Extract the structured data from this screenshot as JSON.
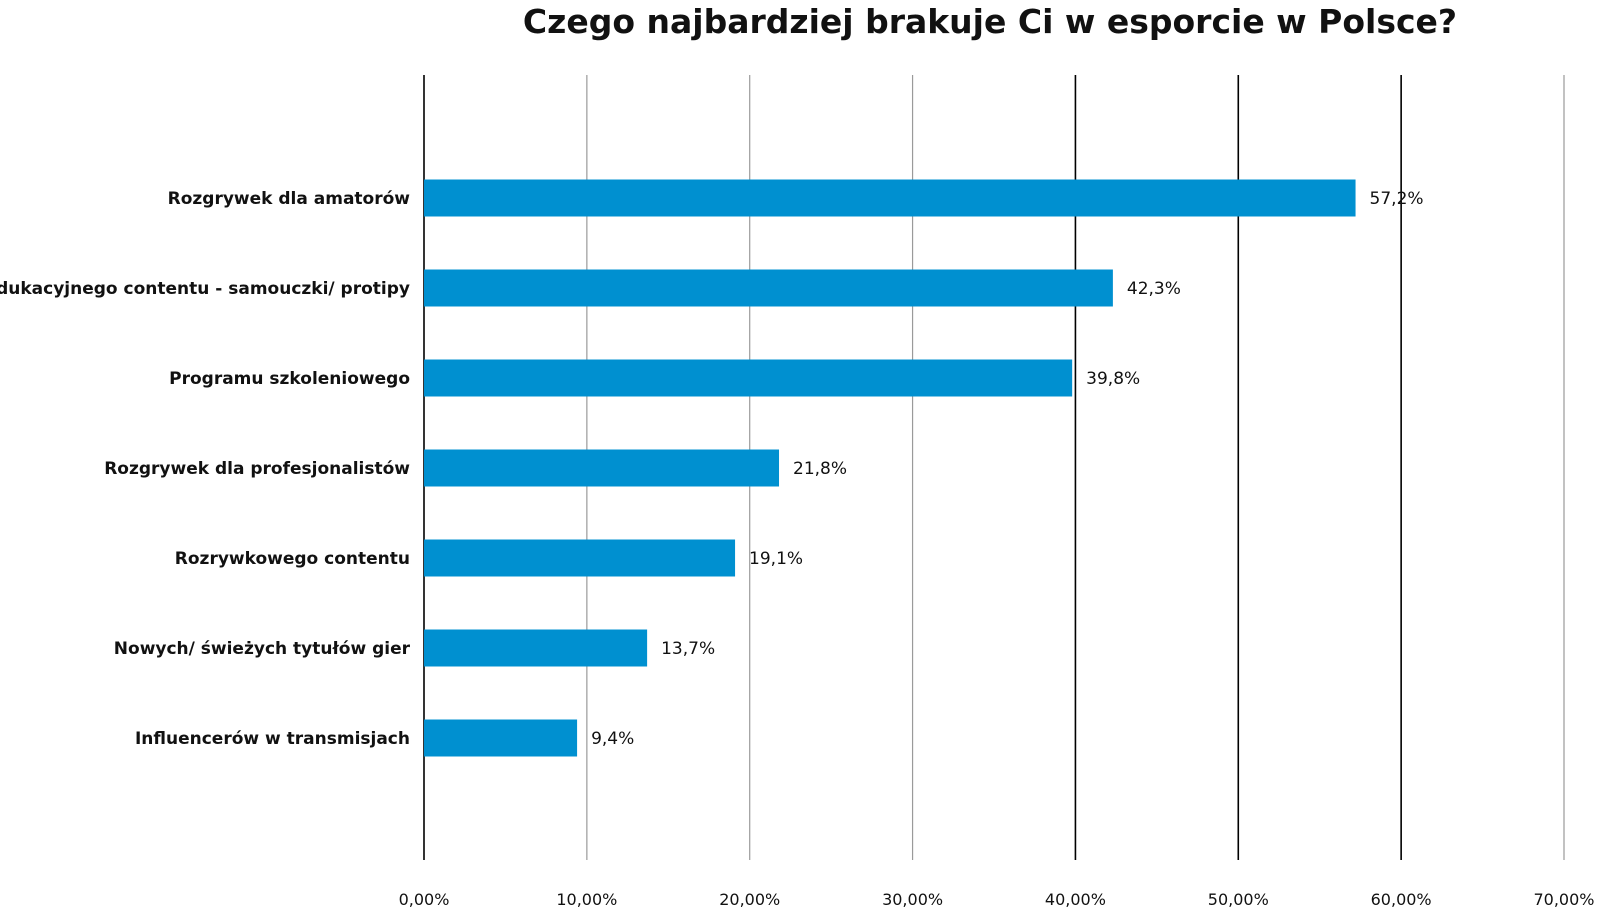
{
  "chart_data": {
    "type": "bar",
    "orientation": "horizontal",
    "title": "Czego najbardziej brakuje Ci w esporcie w Polsce?",
    "categories": [
      "Rozgrywek dla amatorów",
      "Edukacyjnego contentu - samouczki/ protipy",
      "Programu szkoleniowego",
      "Rozgrywek dla profesjonalistów",
      "Rozrywkowego contentu",
      "Nowych/ świeżych tytułów gier",
      "Influencerów w transmisjach"
    ],
    "values": [
      57.2,
      42.3,
      39.8,
      21.8,
      19.1,
      13.7,
      9.4
    ],
    "value_labels": [
      "57,2%",
      "42,3%",
      "39,8%",
      "21,8%",
      "19,1%",
      "13,7%",
      "9,4%"
    ],
    "x_ticks": [
      0,
      10,
      20,
      30,
      40,
      50,
      60,
      70
    ],
    "x_tick_labels": [
      "0,00%",
      "10,00%",
      "20,00%",
      "30,00%",
      "40,00%",
      "50,00%",
      "60,00%",
      "70,00%"
    ],
    "xlim": [
      0,
      70
    ],
    "xlabel": "",
    "ylabel": "",
    "grid": true,
    "bar_color": "#0090d0",
    "major_grid_color": "#000000",
    "minor_grid_color": "#9a9a9a"
  }
}
